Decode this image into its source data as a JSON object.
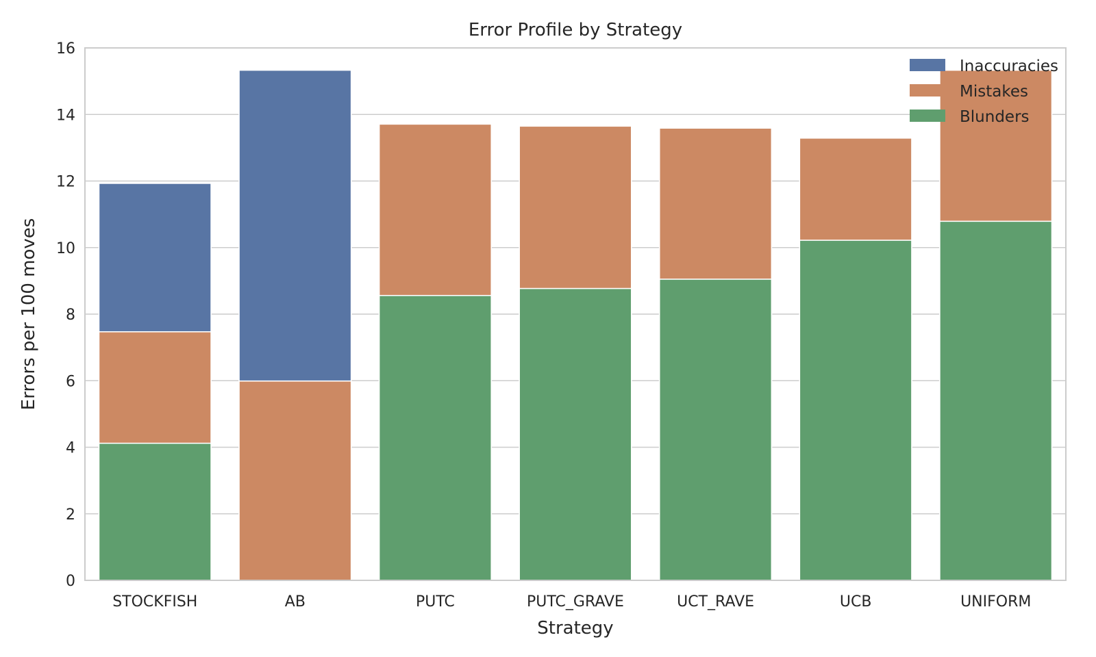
{
  "chart_data": {
    "type": "bar",
    "stacked": false,
    "overlay": "series drawn on top of each other, each bar starting at 0",
    "title": "Error Profile by Strategy",
    "xlabel": "Strategy",
    "ylabel": "Errors per 100 moves",
    "categories": [
      "STOCKFISH",
      "AB",
      "PUTC",
      "PUTC_GRAVE",
      "UCT_RAVE",
      "UCB",
      "UNIFORM"
    ],
    "ylim": [
      0,
      16
    ],
    "yticks": [
      "0",
      "2",
      "4",
      "6",
      "8",
      "10",
      "12",
      "14",
      "16"
    ],
    "grid": true,
    "legend_position": "top-right",
    "series": [
      {
        "name": "Inaccuracies",
        "color": "#5875a4",
        "values": [
          11.93,
          15.33,
          null,
          null,
          null,
          null,
          null
        ]
      },
      {
        "name": "Mistakes",
        "color": "#cc8963",
        "values": [
          7.47,
          5.99,
          13.71,
          13.65,
          13.59,
          13.29,
          15.33
        ]
      },
      {
        "name": "Blunders",
        "color": "#5f9e6e",
        "values": [
          4.12,
          null,
          8.56,
          8.77,
          9.05,
          10.22,
          10.79
        ]
      }
    ]
  }
}
